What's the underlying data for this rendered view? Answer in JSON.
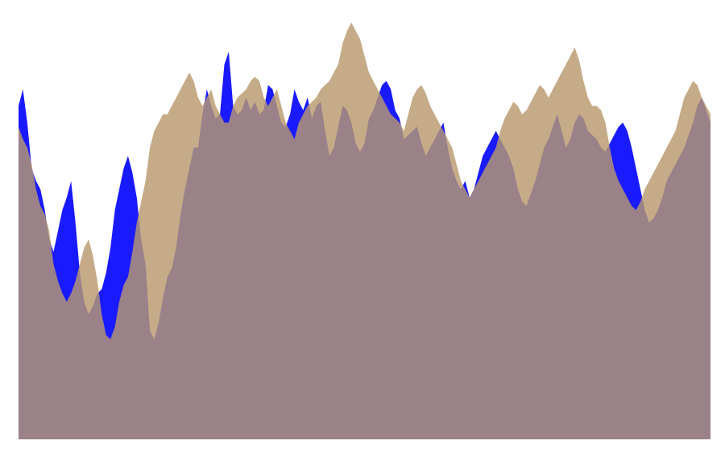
{
  "chart_data": {
    "type": "area",
    "stacked": false,
    "xlim": [
      0,
      158
    ],
    "ylim": [
      0,
      100
    ],
    "axes_visible": false,
    "grid": false,
    "legend": "none",
    "series": [
      {
        "color": "#1a1aff",
        "values": [
          80,
          84,
          76,
          65,
          62,
          60,
          55,
          48,
          45,
          50,
          55,
          58,
          62,
          52,
          40,
          33,
          30,
          32,
          35,
          36,
          40,
          46,
          55,
          60,
          65,
          68,
          64,
          58,
          48,
          42,
          26,
          24,
          28,
          34,
          39,
          41,
          46,
          54,
          60,
          65,
          70,
          70,
          78,
          84,
          80,
          77,
          78,
          90,
          93,
          80,
          78,
          79,
          82,
          79,
          81,
          78,
          79,
          85,
          84,
          80,
          76,
          75,
          78,
          84,
          81,
          79,
          82,
          77,
          80,
          81,
          74,
          68,
          70,
          75,
          80,
          79,
          76,
          71,
          69,
          71,
          77,
          79,
          82,
          85,
          86,
          84,
          79,
          77,
          72,
          73,
          74,
          75,
          71,
          68,
          70,
          72,
          74,
          76,
          70,
          65,
          62,
          60,
          62,
          58,
          60,
          64,
          68,
          70,
          72,
          74,
          72,
          70,
          68,
          65,
          60,
          57,
          56,
          59,
          62,
          66,
          70,
          72,
          75,
          78,
          74,
          70,
          72,
          76,
          78,
          77,
          74,
          73,
          72,
          70,
          69,
          71,
          73,
          75,
          76,
          74,
          70,
          65,
          60,
          55,
          52,
          53,
          55,
          58,
          62,
          64,
          66,
          68,
          70,
          73,
          76,
          80,
          82,
          79,
          76
        ]
      },
      {
        "color": "#b8986e",
        "values": [
          75,
          72,
          70,
          66,
          60,
          56,
          54,
          50,
          42,
          38,
          35,
          33,
          35,
          38,
          42,
          46,
          48,
          44,
          38,
          30,
          25,
          24,
          27,
          33,
          37,
          39,
          45,
          52,
          57,
          62,
          70,
          74,
          76,
          78,
          78,
          80,
          82,
          84,
          86,
          88,
          86,
          82,
          80,
          82,
          84,
          80,
          78,
          76,
          76,
          80,
          82,
          83,
          84,
          86,
          87,
          86,
          82,
          80,
          82,
          84,
          80,
          76,
          74,
          72,
          76,
          78,
          80,
          81,
          82,
          84,
          85,
          86,
          88,
          90,
          95,
          98,
          100,
          98,
          96,
          92,
          88,
          86,
          84,
          82,
          80,
          78,
          77,
          76,
          74,
          78,
          82,
          84,
          85,
          83,
          80,
          78,
          76,
          74,
          72,
          70,
          66,
          62,
          60,
          58,
          60,
          62,
          64,
          66,
          68,
          70,
          74,
          77,
          79,
          81,
          80,
          78,
          79,
          81,
          83,
          85,
          84,
          82,
          84,
          86,
          88,
          90,
          92,
          94,
          91,
          86,
          82,
          80,
          80,
          79,
          76,
          70,
          65,
          62,
          60,
          58,
          56,
          55,
          57,
          60,
          62,
          64,
          66,
          68,
          70,
          72,
          74,
          78,
          82,
          84,
          86,
          85,
          82,
          80,
          78
        ]
      }
    ]
  }
}
